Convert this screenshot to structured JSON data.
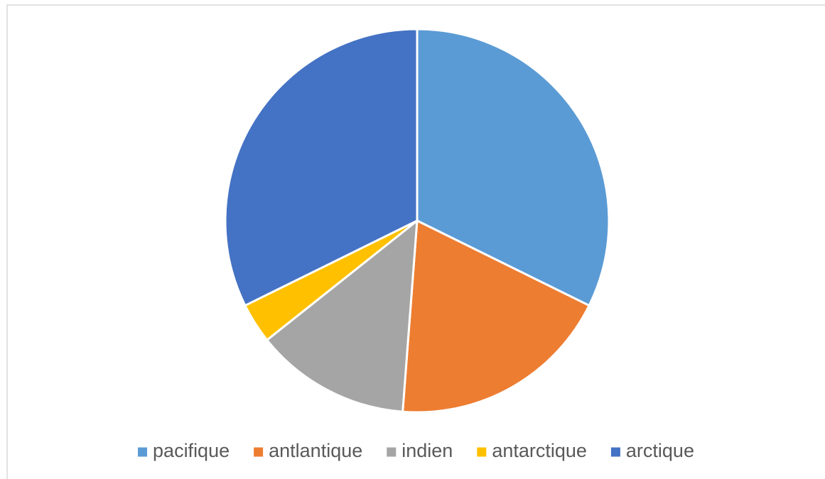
{
  "chart_data": {
    "type": "pie",
    "categories": [
      "pacifique",
      "antlantique",
      "indien",
      "antarctique",
      "arctique"
    ],
    "values": [
      32.3,
      18.9,
      13.1,
      3.4,
      32.3
    ],
    "colors": [
      "#5b9bd5",
      "#ed7d31",
      "#a5a5a5",
      "#ffc000",
      "#4472c4"
    ],
    "legend": "bottom"
  }
}
